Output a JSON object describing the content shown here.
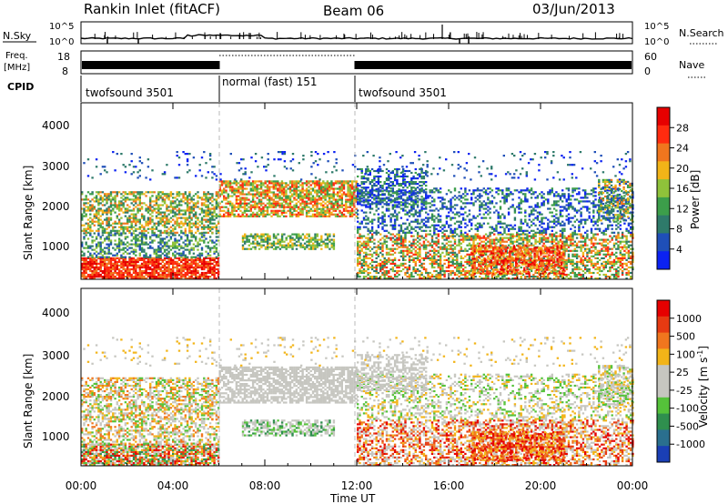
{
  "header": {
    "station": "Rankin Inlet (fitACF)",
    "beam": "Beam 06",
    "date": "03/Jun/2013"
  },
  "noise_panel": {
    "left_label": "N.Sky",
    "right_label": "N.Search",
    "tick_top": "10^5",
    "tick_bottom": "10^0"
  },
  "freq_panel": {
    "left_label_line1": "Freq.",
    "left_label_line2": "[MHz]",
    "left_ticks": [
      "18",
      "8"
    ],
    "right_label": "Nave",
    "right_ticks": [
      "60",
      "0"
    ]
  },
  "cpid_panel": {
    "label": "CPID",
    "segments": [
      {
        "start": 0,
        "end": 6,
        "label": "twofsound 3501"
      },
      {
        "start": 6,
        "end": 12,
        "label": "normal (fast) 151"
      },
      {
        "start": 12,
        "end": 24,
        "label": "twofsound 3501"
      }
    ]
  },
  "x_axis": {
    "label": "Time UT",
    "ticks": [
      "00:00",
      "04:00",
      "08:00",
      "12:00",
      "16:00",
      "20:00",
      "00:00"
    ]
  },
  "power_panel": {
    "ylabel": "Slant Range [km]",
    "yticks": [
      "1000",
      "2000",
      "3000",
      "4000"
    ],
    "colorbar_label": "Power [dB]",
    "colorbar_ticks": [
      "4",
      "8",
      "12",
      "16",
      "20",
      "24",
      "28"
    ],
    "colors": [
      "#0b22f2",
      "#1f4fb8",
      "#2e7a6a",
      "#3c9e4a",
      "#8fc23a",
      "#f2b418",
      "#f0761e",
      "#ff2b0f",
      "#e60000"
    ]
  },
  "velocity_panel": {
    "ylabel": "Slant Range [km]",
    "yticks": [
      "1000",
      "2000",
      "3000",
      "4000"
    ],
    "colorbar_label": "Velocity [m s^-1]",
    "colorbar_ticks": [
      "1000",
      "500",
      "100",
      "25",
      "-25",
      "-100",
      "-500",
      "-1000"
    ],
    "colors": [
      "#1a3fb5",
      "#2a6f8e",
      "#2f8f4e",
      "#55c23a",
      "#c6c6c0",
      "#c6c6c0",
      "#f2b418",
      "#f0761e",
      "#e63a12",
      "#e60000"
    ]
  },
  "chart_data": {
    "type": "heatmap",
    "x": {
      "label": "Time UT",
      "range_hours": [
        0,
        24
      ]
    },
    "y": {
      "label": "Slant Range [km]",
      "range_km": [
        180,
        4500
      ]
    },
    "panels": [
      {
        "name": "Power",
        "unit": "dB",
        "scale": [
          0,
          30
        ]
      },
      {
        "name": "Velocity",
        "unit": "m s-1",
        "scale": [
          -1000,
          1000
        ]
      }
    ],
    "cpid_segments": [
      {
        "start": 0,
        "end": 6,
        "label": "twofsound 3501"
      },
      {
        "start": 6,
        "end": 12,
        "label": "normal (fast) 151"
      },
      {
        "start": 12,
        "end": 24,
        "label": "twofsound 3501"
      }
    ]
  }
}
